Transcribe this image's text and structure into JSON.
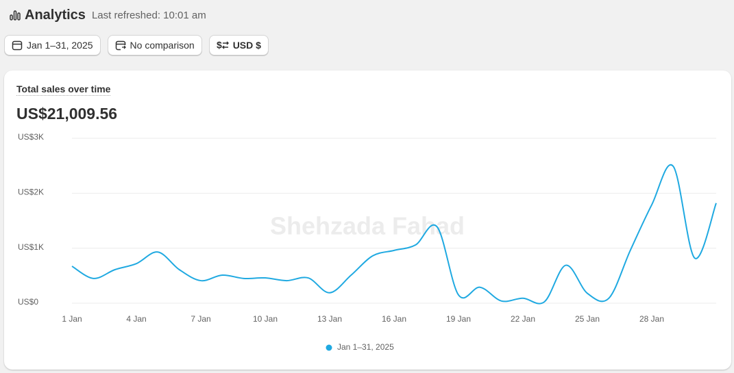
{
  "header": {
    "title": "Analytics",
    "subtitle": "Last refreshed: 10:01 am"
  },
  "buttons": [
    "Jan 1–31, 2025",
    "No comparison",
    "USD $"
  ],
  "watermark": "Shehzada Fahad",
  "chart_data": {
    "type": "line",
    "title": "Total sales over time",
    "total": "US$21,009.56",
    "categories": [
      "1 Jan",
      null,
      null,
      "4 Jan",
      null,
      null,
      "7 Jan",
      null,
      null,
      "10 Jan",
      null,
      null,
      "13 Jan",
      null,
      null,
      "16 Jan",
      null,
      null,
      "19 Jan",
      null,
      null,
      "22 Jan",
      null,
      null,
      "25 Jan",
      null,
      null,
      "28 Jan",
      null,
      null,
      null
    ],
    "series": [
      {
        "name": "Jan 1–31, 2025",
        "color": "#1fa9e1",
        "values": [
          672,
          450,
          610,
          720,
          930,
          610,
          410,
          510,
          450,
          460,
          410,
          460,
          190,
          510,
          860,
          960,
          1060,
          1390,
          150,
          290,
          40,
          90,
          25,
          690,
          180,
          90,
          960,
          1790,
          2490,
          820,
          1820
        ]
      }
    ],
    "ylim": [
      0,
      3000
    ],
    "yticks": [
      {
        "value": 0,
        "label": "US$0"
      },
      {
        "value": 1000,
        "label": "US$1K"
      },
      {
        "value": 2000,
        "label": "US$2K"
      },
      {
        "value": 3000,
        "label": "US$3K"
      }
    ],
    "grid": true,
    "legend": "bottom"
  }
}
